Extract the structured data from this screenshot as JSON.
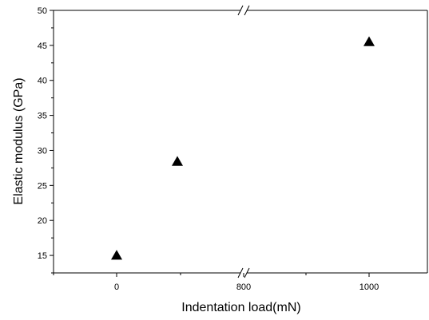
{
  "chart_data": {
    "type": "scatter",
    "xlabel": "Indentation load(mN)",
    "ylabel": "Elastic modulus (GPa)",
    "ylim": [
      12.5,
      50
    ],
    "x_axis_break": "between 0 segment and 800",
    "x_ticks": [
      "0",
      "800",
      "1000"
    ],
    "y_ticks": [
      "15",
      "20",
      "25",
      "30",
      "35",
      "40",
      "45",
      "50"
    ],
    "grid": false,
    "legend": "none",
    "marker": "filled-triangle",
    "marker_color": "#000000",
    "points": [
      {
        "x_label": "≈10",
        "y": 15.0
      },
      {
        "x_label": "≈100",
        "y": 28.4
      },
      {
        "x_label": "1000",
        "y": 45.5
      }
    ]
  }
}
